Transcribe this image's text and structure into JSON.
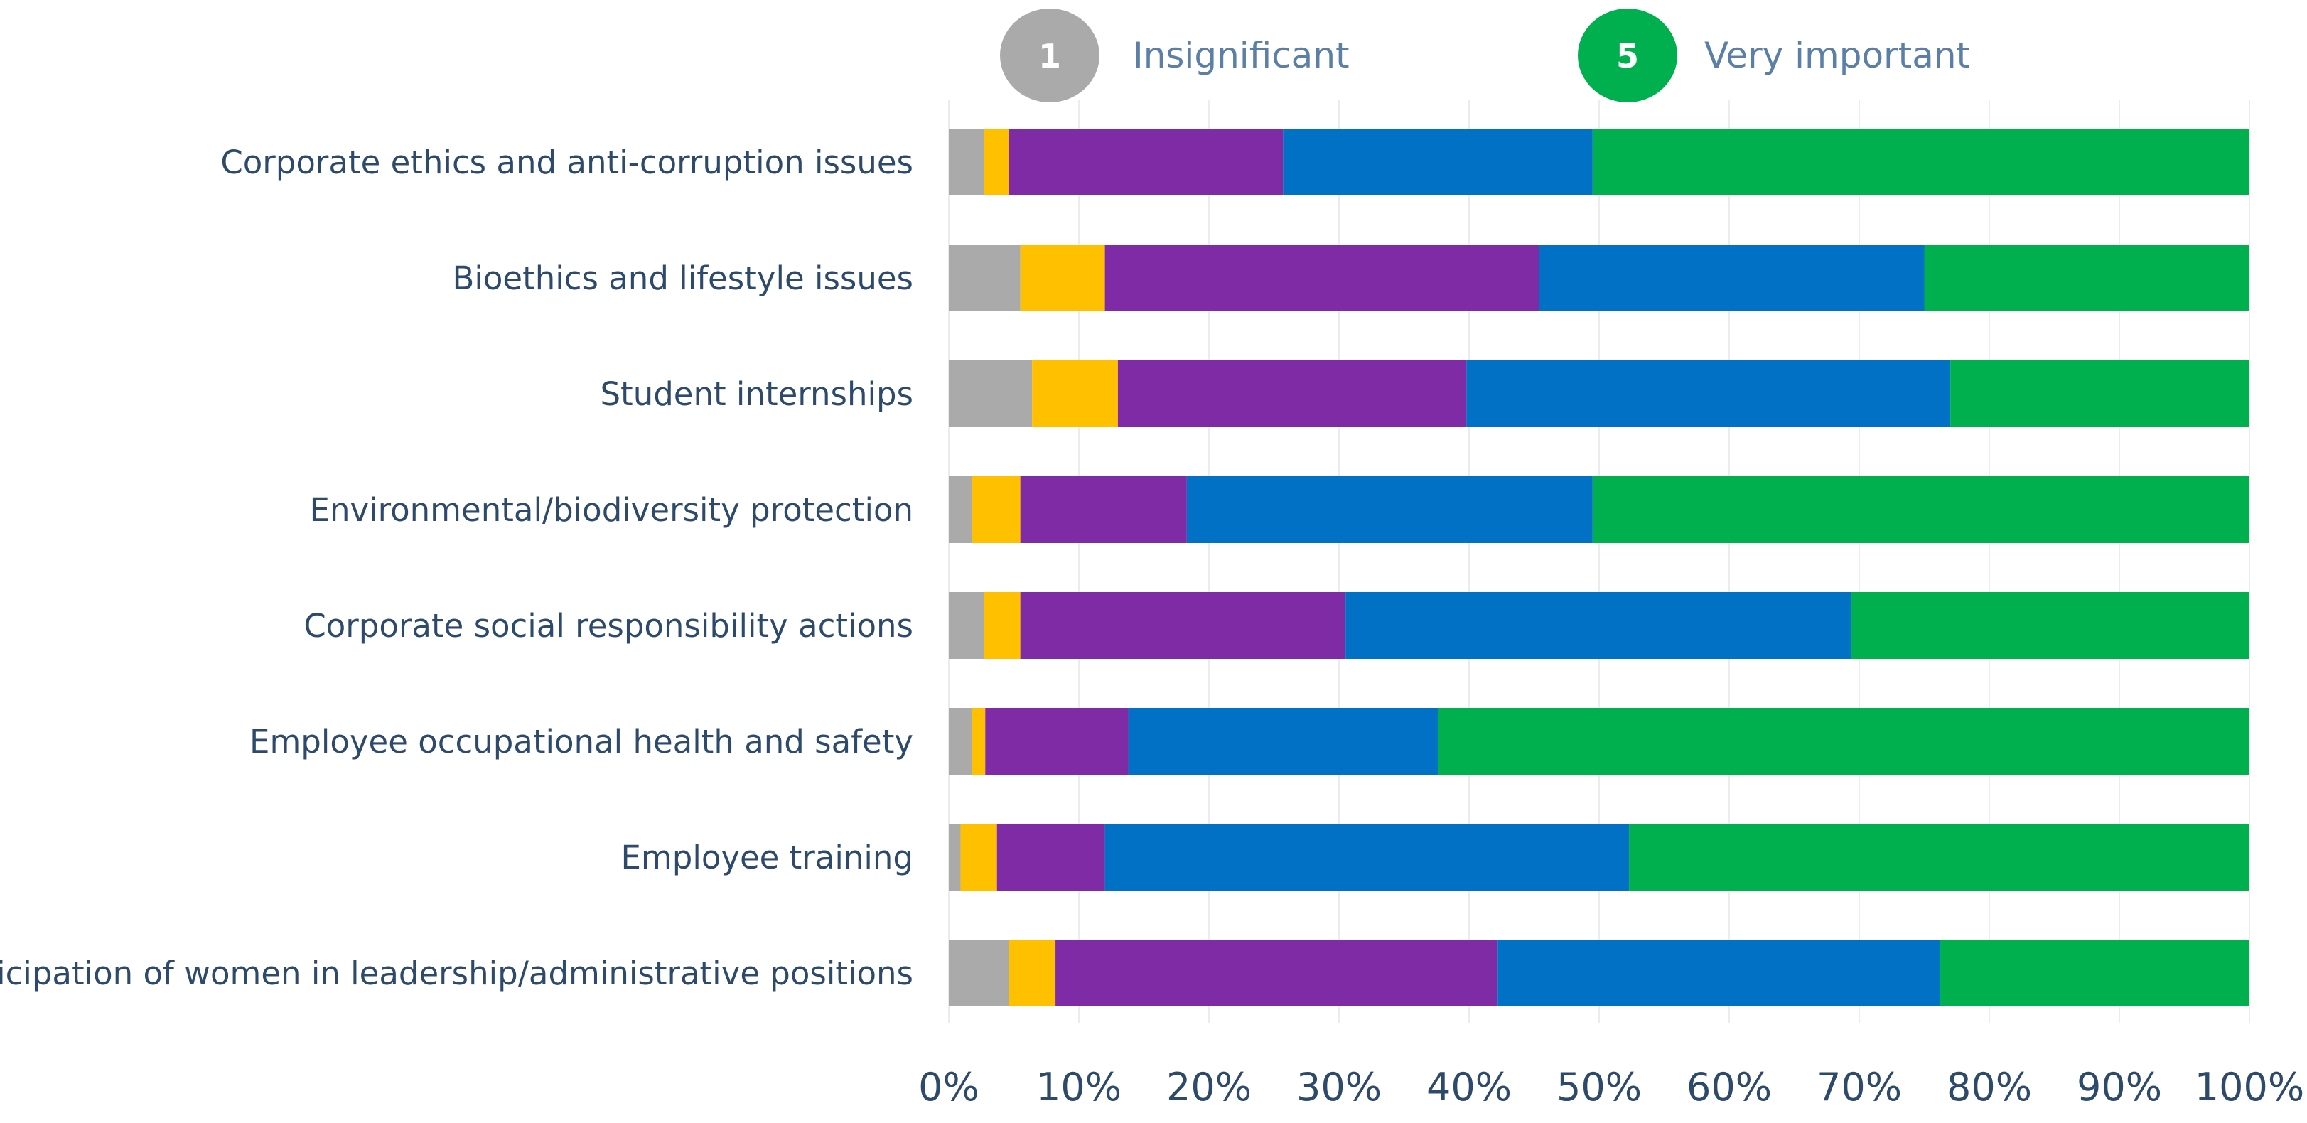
{
  "legend": {
    "low": {
      "badge": "1",
      "label": "Insignificant",
      "color": "#aaaaaa"
    },
    "high": {
      "badge": "5",
      "label": "Very important",
      "color": "#00b04f"
    }
  },
  "chart_data": {
    "type": "bar",
    "orientation": "horizontal",
    "stacked": true,
    "title": "",
    "xlabel": "",
    "ylabel": "",
    "xlim": [
      0,
      100
    ],
    "x_ticks": [
      "0%",
      "10%",
      "20%",
      "30%",
      "40%",
      "50%",
      "60%",
      "70%",
      "80%",
      "90%",
      "100%"
    ],
    "grid": true,
    "legend_position": "top",
    "categories": [
      "Corporate ethics and anti-corruption issues",
      "Bioethics and lifestyle issues",
      "Student internships",
      "Environmental/biodiversity protection",
      "Corporate social responsibility actions",
      "Employee occupational health and safety",
      "Employee training",
      "Participation of women in leadership/administrative positions"
    ],
    "series": [
      {
        "name": "1",
        "color": "#aaaaaa",
        "values": [
          2.7,
          5.5,
          6.4,
          1.8,
          2.7,
          1.8,
          0.9,
          4.6
        ]
      },
      {
        "name": "2",
        "color": "#ffc000",
        "values": [
          1.9,
          6.5,
          6.6,
          3.7,
          2.8,
          1.0,
          2.8,
          3.6
        ]
      },
      {
        "name": "3",
        "color": "#7f2ba5",
        "values": [
          21.1,
          33.4,
          26.8,
          12.8,
          25.0,
          11.0,
          8.3,
          34.0
        ]
      },
      {
        "name": "4",
        "color": "#0071c5",
        "values": [
          23.8,
          29.6,
          37.2,
          31.2,
          38.9,
          23.8,
          40.3,
          34.0
        ]
      },
      {
        "name": "5",
        "color": "#00b04f",
        "values": [
          50.5,
          25.0,
          23.0,
          50.5,
          30.6,
          62.4,
          47.7,
          23.8
        ]
      }
    ]
  }
}
